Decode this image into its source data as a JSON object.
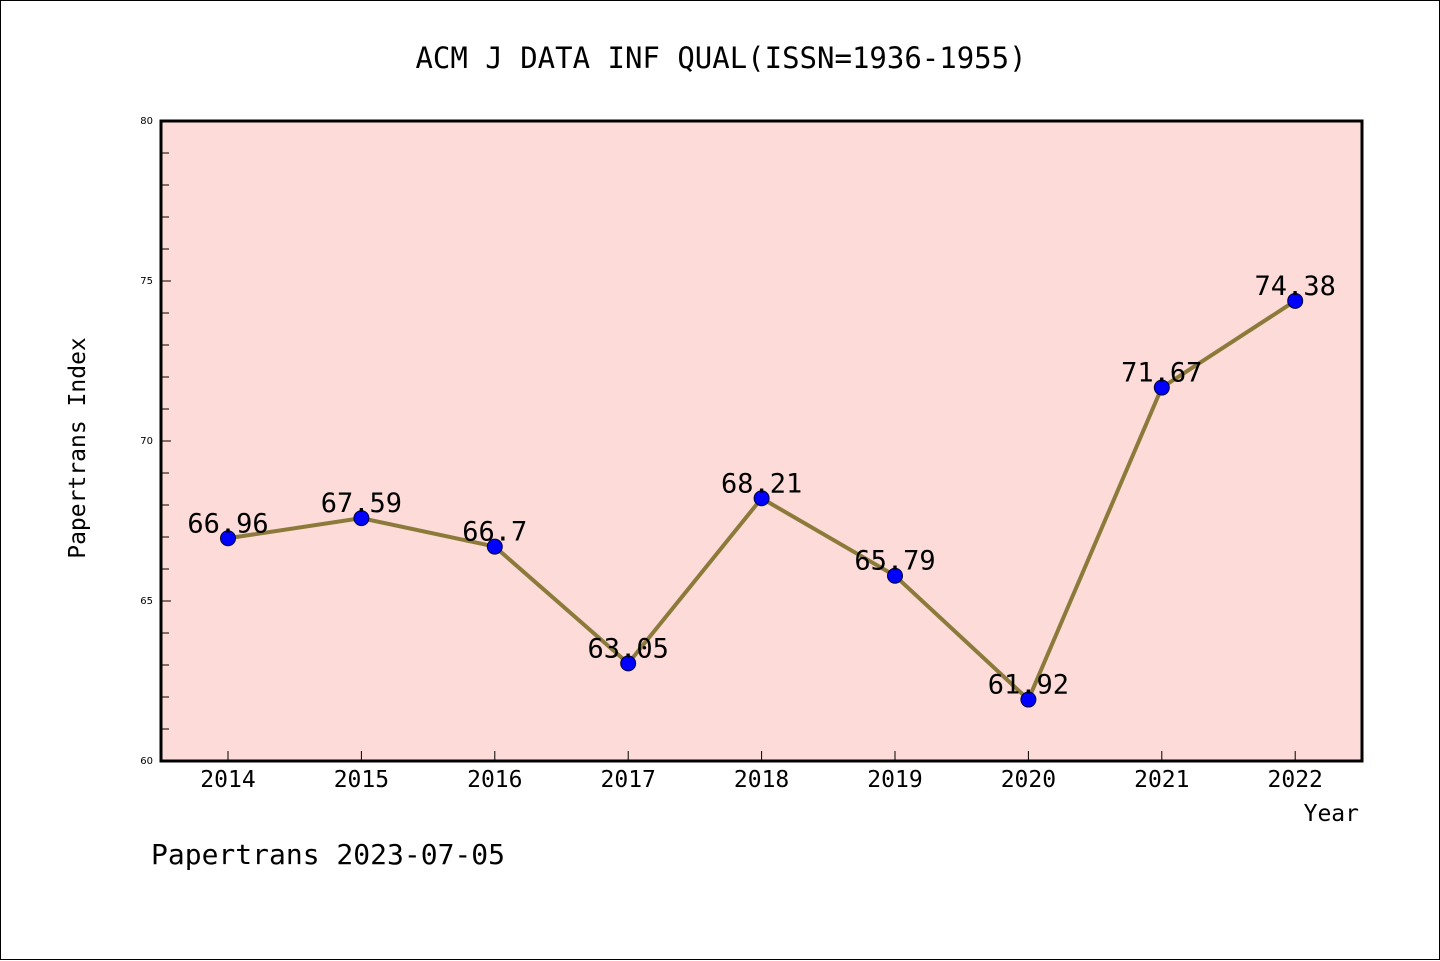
{
  "chart_data": {
    "type": "line",
    "title": "ACM J DATA INF QUAL(ISSN=1936-1955)",
    "xlabel": "Year",
    "ylabel": "Papertrans Index",
    "categories": [
      "2014",
      "2015",
      "2016",
      "2017",
      "2018",
      "2019",
      "2020",
      "2021",
      "2022"
    ],
    "series": [
      {
        "values": [
          66.96,
          67.59,
          66.7,
          63.05,
          68.21,
          65.79,
          61.92,
          71.67,
          74.38
        ],
        "value_labels": [
          "66.96",
          "67.59",
          "66.7",
          "63.05",
          "68.21",
          "65.79",
          "61.92",
          "71.67",
          "74.38"
        ],
        "line_color": "#8b7a3a",
        "marker_color": "#0000ff"
      }
    ],
    "ylim": [
      60,
      80
    ],
    "yticks": [
      "60",
      "65",
      "70",
      "75",
      "80"
    ],
    "grid": false,
    "plot_background": "#fddbd8",
    "footer": "Papertrans 2023-07-05"
  }
}
